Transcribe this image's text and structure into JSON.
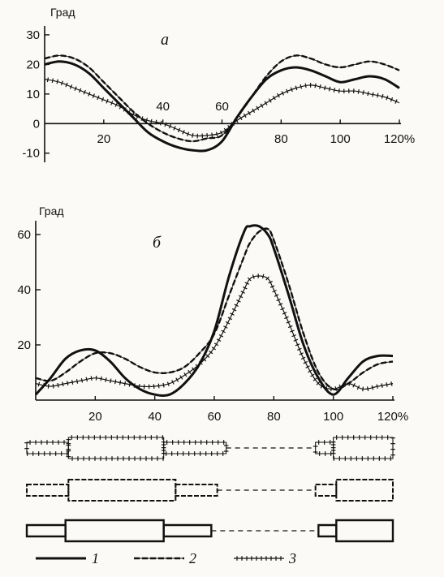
{
  "chart_data": [
    {
      "type": "line",
      "panel_label": "а",
      "ylabel": "Град",
      "xlabel": "",
      "x_ticks": [
        20,
        40,
        60,
        80,
        100,
        "120%"
      ],
      "y_ticks": [
        30,
        20,
        10,
        0,
        -10
      ],
      "xlim": [
        0,
        120
      ],
      "ylim": [
        -12,
        33
      ],
      "x": [
        0,
        5,
        10,
        15,
        20,
        25,
        30,
        35,
        40,
        45,
        50,
        55,
        60,
        65,
        70,
        75,
        80,
        85,
        90,
        95,
        100,
        105,
        110,
        115,
        120
      ],
      "series": [
        {
          "name": "1",
          "style": "solid",
          "values": [
            20,
            21,
            20,
            17,
            12,
            7,
            2,
            -3,
            -6,
            -8,
            -9,
            -9,
            -6,
            2,
            9,
            15,
            18,
            19,
            18,
            16,
            14,
            15,
            16,
            15,
            12
          ]
        },
        {
          "name": "2",
          "style": "dashed",
          "values": [
            22,
            23,
            22,
            19,
            14,
            9,
            4,
            0,
            -3,
            -5,
            -6,
            -5,
            -4,
            2,
            9,
            16,
            21,
            23,
            22,
            20,
            19,
            20,
            21,
            20,
            18
          ]
        },
        {
          "name": "3",
          "style": "ticked",
          "values": [
            15,
            14,
            12,
            10,
            8,
            6,
            3,
            1,
            0,
            -2,
            -4,
            -4,
            -3,
            1,
            4,
            7,
            10,
            12,
            13,
            12,
            11,
            11,
            10,
            9,
            7
          ]
        }
      ]
    },
    {
      "type": "line",
      "panel_label": "б",
      "ylabel": "Град",
      "xlabel": "",
      "x_ticks": [
        20,
        40,
        60,
        80,
        100,
        "120%"
      ],
      "y_ticks": [
        60,
        40,
        20
      ],
      "xlim": [
        0,
        120
      ],
      "ylim": [
        0,
        65
      ],
      "x": [
        0,
        5,
        10,
        15,
        20,
        25,
        30,
        35,
        40,
        45,
        50,
        55,
        60,
        65,
        70,
        72,
        75,
        78,
        80,
        85,
        90,
        95,
        100,
        105,
        110,
        115,
        120
      ],
      "series": [
        {
          "name": "1",
          "style": "solid",
          "values": [
            2,
            8,
            15,
            18,
            18,
            14,
            8,
            4,
            2,
            2,
            6,
            13,
            25,
            45,
            61,
            63,
            63,
            60,
            55,
            38,
            20,
            8,
            2,
            8,
            14,
            16,
            16
          ]
        },
        {
          "name": "2",
          "style": "dashed",
          "values": [
            8,
            7,
            10,
            14,
            17,
            17,
            15,
            12,
            10,
            10,
            12,
            17,
            24,
            38,
            52,
            57,
            61,
            62,
            58,
            42,
            24,
            10,
            4,
            6,
            10,
            13,
            14
          ]
        },
        {
          "name": "3",
          "style": "ticked",
          "values": [
            6,
            5,
            6,
            7,
            8,
            7,
            6,
            5,
            5,
            6,
            9,
            13,
            19,
            29,
            40,
            44,
            45,
            44,
            40,
            28,
            15,
            6,
            4,
            6,
            4,
            5,
            6
          ]
        }
      ]
    }
  ],
  "gait_diagram": {
    "rows": [
      {
        "series": "3",
        "style": "ticked",
        "segments": [
          {
            "x0": -3,
            "x1": 11,
            "level": "low"
          },
          {
            "x0": 11,
            "x1": 43,
            "level": "high"
          },
          {
            "x0": 43,
            "x1": 64,
            "level": "low"
          },
          {
            "x0": 64,
            "x1": 94,
            "level": "gap"
          },
          {
            "x0": 94,
            "x1": 100,
            "level": "low"
          },
          {
            "x0": 100,
            "x1": 120,
            "level": "high"
          }
        ]
      },
      {
        "series": "2",
        "style": "dashed",
        "segments": [
          {
            "x0": -3,
            "x1": 11,
            "level": "low"
          },
          {
            "x0": 11,
            "x1": 47,
            "level": "high"
          },
          {
            "x0": 47,
            "x1": 61,
            "level": "low"
          },
          {
            "x0": 61,
            "x1": 94,
            "level": "gap"
          },
          {
            "x0": 94,
            "x1": 101,
            "level": "low"
          },
          {
            "x0": 101,
            "x1": 120,
            "level": "high"
          }
        ]
      },
      {
        "series": "1",
        "style": "solid",
        "segments": [
          {
            "x0": -3,
            "x1": 10,
            "level": "low"
          },
          {
            "x0": 10,
            "x1": 43,
            "level": "high"
          },
          {
            "x0": 43,
            "x1": 59,
            "level": "low"
          },
          {
            "x0": 59,
            "x1": 95,
            "level": "gap"
          },
          {
            "x0": 95,
            "x1": 101,
            "level": "low"
          },
          {
            "x0": 101,
            "x1": 120,
            "level": "high"
          }
        ]
      }
    ]
  },
  "legend": [
    {
      "label": "1",
      "style": "solid"
    },
    {
      "label": "2",
      "style": "dashed"
    },
    {
      "label": "3",
      "style": "ticked"
    }
  ]
}
